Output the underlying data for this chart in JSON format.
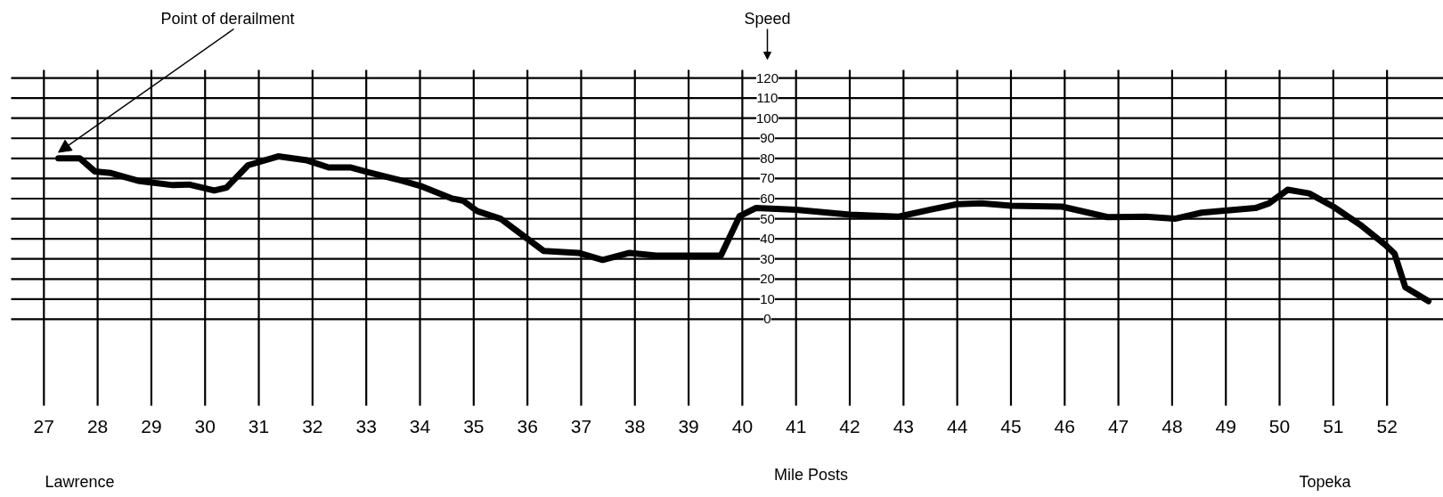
{
  "chart_data": {
    "type": "line",
    "ylabel": "Speed",
    "xlabel": "Mile Posts",
    "x": [
      27.27,
      27.67,
      27.95,
      28.25,
      28.78,
      29.4,
      29.7,
      30.17,
      30.4,
      30.8,
      31.36,
      31.9,
      32.3,
      32.7,
      33.1,
      33.65,
      34.0,
      34.6,
      34.8,
      35.07,
      35.5,
      36.0,
      36.3,
      36.95,
      37.4,
      37.9,
      38.4,
      39.6,
      39.95,
      40.25,
      41.0,
      42.0,
      42.9,
      43.5,
      44.0,
      44.45,
      45.0,
      45.95,
      46.8,
      47.5,
      48.05,
      48.55,
      49.55,
      49.8,
      50.15,
      50.55,
      51.0,
      51.5,
      51.97,
      52.14,
      52.34,
      52.77
    ],
    "series": [
      {
        "color": "#000000",
        "values": [
          80,
          80,
          73.5,
          72.7,
          68.7,
          66.7,
          67,
          64,
          65.5,
          76.6,
          81,
          79,
          75.5,
          75.5,
          72.7,
          69,
          66.4,
          60,
          59,
          53.7,
          50,
          40,
          34,
          33,
          29.5,
          33,
          31.6,
          31.6,
          51.3,
          55.3,
          54.5,
          52,
          51,
          54.5,
          57.2,
          57.7,
          56.4,
          56,
          50.8,
          51,
          50,
          53,
          55.3,
          57.6,
          64.4,
          62.6,
          56,
          47,
          37,
          32.6,
          15.9,
          9
        ]
      }
    ],
    "xlim": [
      26.39,
      53.05
    ],
    "ylim": [
      -43,
      124
    ],
    "xticks": [
      27,
      28,
      29,
      30,
      31,
      32,
      33,
      34,
      35,
      36,
      37,
      38,
      39,
      40,
      41,
      42,
      43,
      44,
      45,
      46,
      47,
      48,
      49,
      50,
      51,
      52
    ],
    "yticks": [
      0,
      10,
      20,
      30,
      40,
      50,
      60,
      70,
      80,
      90,
      100,
      110,
      120
    ],
    "grid": true,
    "marker": "none",
    "line_style": "solid",
    "annotations": [
      {
        "text": "Point of derailment",
        "x": 27.27,
        "y": 80
      },
      "Lawrence",
      "Topeka"
    ]
  }
}
